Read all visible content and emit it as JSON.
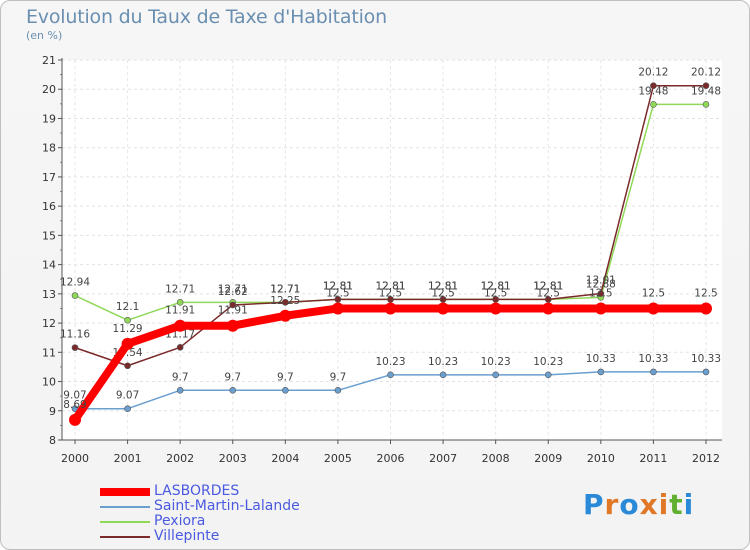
{
  "title": "Evolution du Taux de Taxe d'Habitation",
  "subtitle": "(en %)",
  "chart_data": {
    "type": "line",
    "title": "Evolution du Taux de Taxe d'Habitation",
    "ylabel": "(en %)",
    "xlabel": "",
    "x": [
      "2000",
      "2001",
      "2002",
      "2003",
      "2004",
      "2005",
      "2006",
      "2007",
      "2008",
      "2009",
      "2010",
      "2011",
      "2012"
    ],
    "ylim": [
      8,
      21
    ],
    "yticks": [
      "8",
      "9",
      "10",
      "11",
      "12",
      "13",
      "14",
      "15",
      "16",
      "17",
      "18",
      "19",
      "20",
      "21"
    ],
    "grid": true,
    "legend_position": "bottom-left",
    "series": [
      {
        "name": "LASBORDES",
        "color": "#ff0000",
        "values": [
          8.69,
          11.29,
          11.91,
          11.91,
          12.25,
          12.5,
          12.5,
          12.5,
          12.5,
          12.5,
          12.5,
          12.5,
          12.5
        ],
        "labels": [
          "8.69",
          "11.29",
          "11.91",
          "11.91",
          "12.25",
          "12.5",
          "12.5",
          "12.5",
          "12.5",
          "12.5",
          "12.5",
          "12.5",
          "12.5"
        ]
      },
      {
        "name": "Saint-Martin-Lalande",
        "color": "#6a9fd0",
        "values": [
          9.07,
          9.07,
          9.7,
          9.7,
          9.7,
          9.7,
          10.23,
          10.23,
          10.23,
          10.23,
          10.33,
          10.33,
          10.33
        ],
        "labels": [
          "9.07",
          "9.07",
          "9.7",
          "9.7",
          "9.7",
          "9.7",
          "10.23",
          "10.23",
          "10.23",
          "10.23",
          "10.33",
          "10.33",
          "10.33"
        ]
      },
      {
        "name": "Pexiora",
        "color": "#90d858",
        "values": [
          12.94,
          12.1,
          12.71,
          12.71,
          12.71,
          12.81,
          12.81,
          12.81,
          12.81,
          12.81,
          12.88,
          19.48,
          19.48
        ],
        "labels": [
          "12.94",
          "12.1",
          "12.71",
          "12.71",
          "12.71",
          "12.81",
          "12.81",
          "12.81",
          "12.81",
          "12.81",
          "12.88",
          "19.48",
          "19.48"
        ]
      },
      {
        "name": "Villepinte",
        "color": "#7a2a2a",
        "values": [
          11.16,
          10.54,
          11.17,
          12.62,
          12.71,
          12.81,
          12.81,
          12.81,
          12.81,
          12.81,
          13.01,
          20.12,
          20.12
        ],
        "labels": [
          "11.16",
          "10.54",
          "11.17",
          "12.62",
          "12.71",
          "12.81",
          "12.81",
          "12.81",
          "12.81",
          "12.81",
          "13.01",
          "20.12",
          "20.12"
        ]
      }
    ]
  },
  "legend": {
    "items": [
      {
        "label": "LASBORDES",
        "color": "#ff0000"
      },
      {
        "label": "Saint-Martin-Lalande",
        "color": "#6a9fd0"
      },
      {
        "label": "Pexiora",
        "color": "#90d858"
      },
      {
        "label": "Villepinte",
        "color": "#7a2a2a"
      }
    ]
  },
  "logo": {
    "letters": [
      "P",
      "r",
      "o",
      "x",
      "i",
      "t",
      "i"
    ],
    "colors": [
      "#2a8ad8",
      "#e07828",
      "#2a8ad8",
      "#e07828",
      "#e07828",
      "#60b030",
      "#2a8ad8"
    ]
  }
}
